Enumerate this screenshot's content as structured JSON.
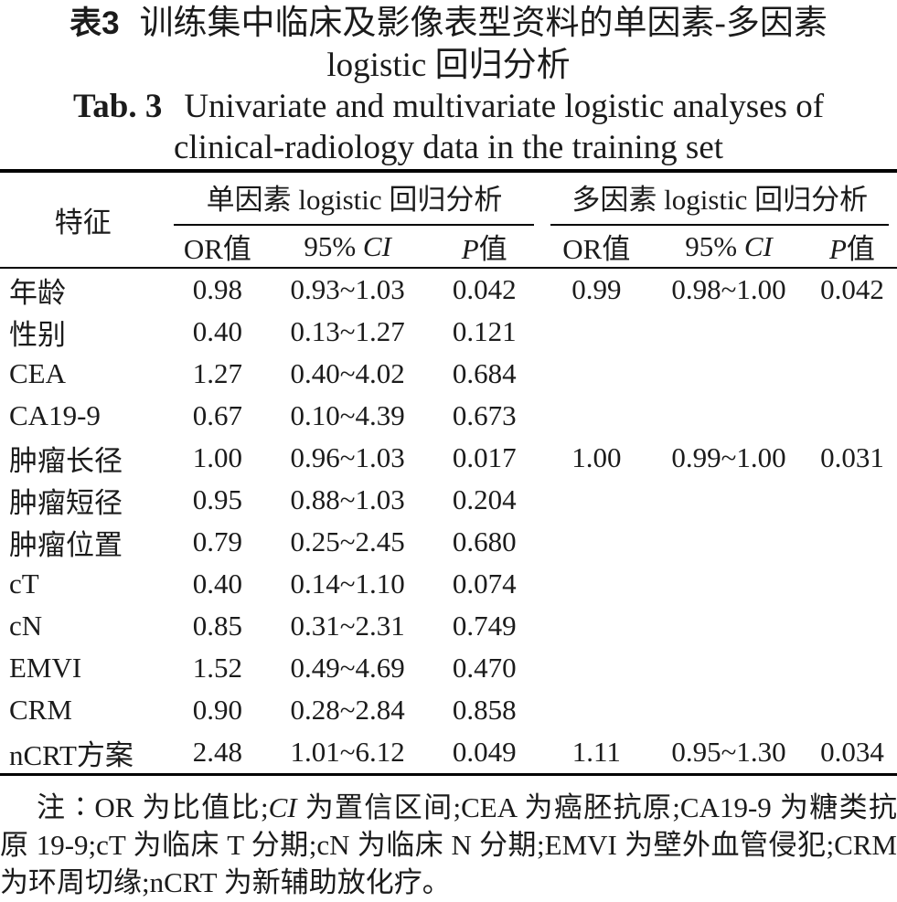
{
  "title": {
    "zh_prefix": "表3",
    "zh_line1": "训练集中临床及影像表型资料的单因素-多因素",
    "zh_line2": "logistic 回归分析",
    "en_prefix": "Tab. 3",
    "en_line1": "Univariate and multivariate logistic analyses of",
    "en_line2": "clinical-radiology data in the training set"
  },
  "table": {
    "feature_header": "特征",
    "group_headers": [
      "单因素 logistic 回归分析",
      "多因素 logistic 回归分析"
    ],
    "sub_headers": [
      "OR值",
      "95% CI",
      "P值",
      "OR值",
      "95% CI",
      "P值"
    ],
    "rows": [
      {
        "label": "年龄",
        "cells": [
          "0.98",
          "0.93~1.03",
          "0.042",
          "0.99",
          "0.98~1.00",
          "0.042"
        ]
      },
      {
        "label": "性别",
        "cells": [
          "0.40",
          "0.13~1.27",
          "0.121",
          "",
          "",
          ""
        ]
      },
      {
        "label": "CEA",
        "cells": [
          "1.27",
          "0.40~4.02",
          "0.684",
          "",
          "",
          ""
        ]
      },
      {
        "label": "CA19-9",
        "cells": [
          "0.67",
          "0.10~4.39",
          "0.673",
          "",
          "",
          ""
        ]
      },
      {
        "label": "肿瘤长径",
        "cells": [
          "1.00",
          "0.96~1.03",
          "0.017",
          "1.00",
          "0.99~1.00",
          "0.031"
        ]
      },
      {
        "label": "肿瘤短径",
        "cells": [
          "0.95",
          "0.88~1.03",
          "0.204",
          "",
          "",
          ""
        ]
      },
      {
        "label": "肿瘤位置",
        "cells": [
          "0.79",
          "0.25~2.45",
          "0.680",
          "",
          "",
          ""
        ]
      },
      {
        "label": "cT",
        "cells": [
          "0.40",
          "0.14~1.10",
          "0.074",
          "",
          "",
          ""
        ]
      },
      {
        "label": "cN",
        "cells": [
          "0.85",
          "0.31~2.31",
          "0.749",
          "",
          "",
          ""
        ]
      },
      {
        "label": "EMVI",
        "cells": [
          "1.52",
          "0.49~4.69",
          "0.470",
          "",
          "",
          ""
        ]
      },
      {
        "label": "CRM",
        "cells": [
          "0.90",
          "0.28~2.84",
          "0.858",
          "",
          "",
          ""
        ]
      },
      {
        "label": "nCRT方案",
        "cells": [
          "2.48",
          "1.01~6.12",
          "0.049",
          "1.11",
          "0.95~1.30",
          "0.034"
        ]
      }
    ]
  },
  "footnote": {
    "segments": [
      {
        "text": "注∶OR 为比值比;",
        "italic": false
      },
      {
        "text": "CI",
        "italic": true
      },
      {
        "text": " 为置信区间;CEA 为癌胚抗原;CA19-9 为糖类抗原 19-9;cT 为临床 T 分期;cN 为临床 N 分期;EMVI 为壁外血管侵犯;CRM 为环周切缘;nCRT 为新辅助放化疗。",
        "italic": false
      }
    ]
  },
  "colors": {
    "text": "#1b1b1b",
    "background": "#ffffff",
    "rule": "#000000"
  }
}
